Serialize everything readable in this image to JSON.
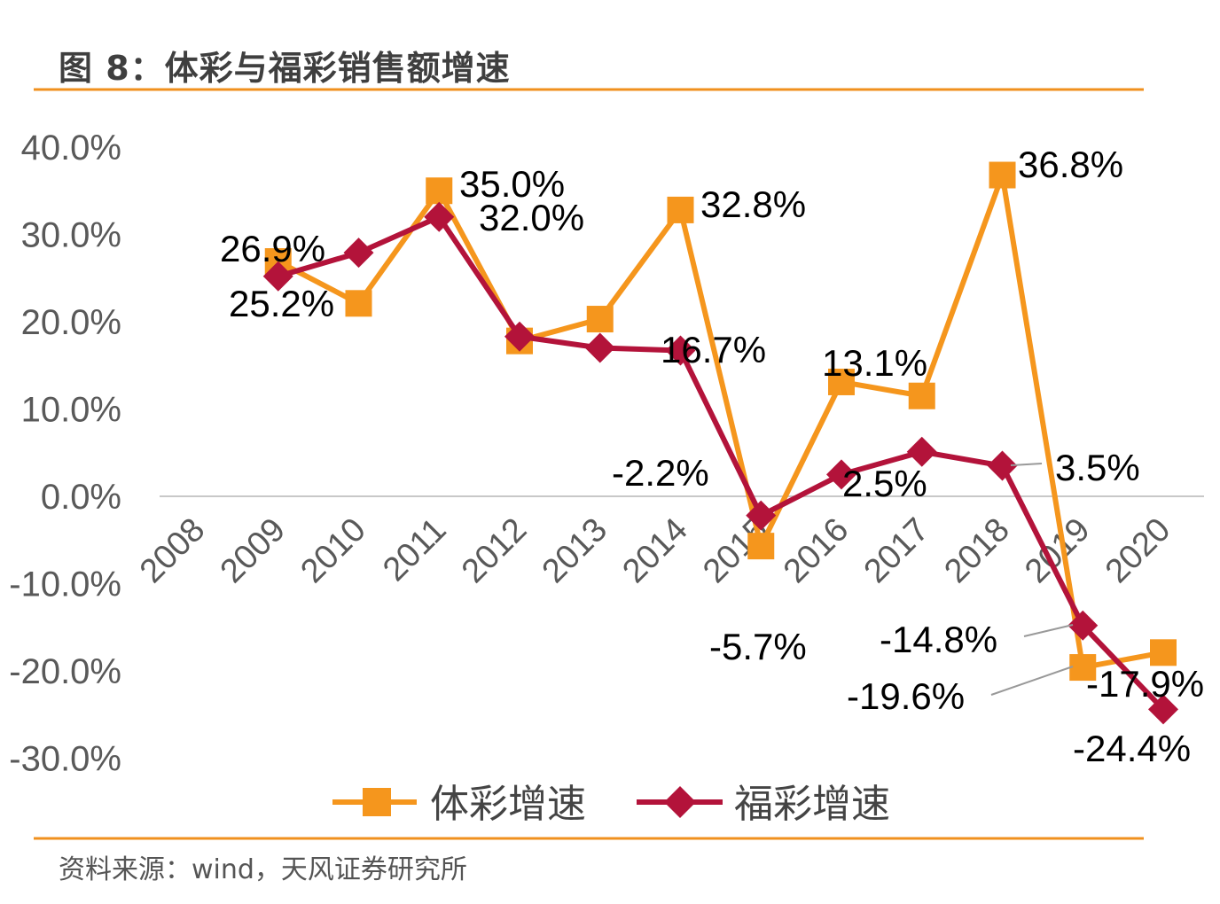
{
  "title": "图 8：体彩与福彩销售额增速",
  "source": "资料来源：wind，天风证券研究所",
  "chart_data": {
    "type": "line",
    "title": "图 8：体彩与福彩销售额增速",
    "categories": [
      "2008",
      "2009",
      "2010",
      "2011",
      "2012",
      "2013",
      "2014",
      "2015",
      "2016",
      "2017",
      "2018",
      "2019",
      "2020"
    ],
    "ylim": [
      -30,
      40
    ],
    "yticks": [
      40,
      30,
      20,
      10,
      0,
      -10,
      -20,
      -30
    ],
    "ytick_labels": [
      "40.0%",
      "30.0%",
      "20.0%",
      "10.0%",
      "0.0%",
      "-10.0%",
      "-20.0%",
      "-30.0%"
    ],
    "grid": false,
    "legend_placement": "bottom",
    "series": [
      {
        "name": "体彩增速",
        "color": "#F5961D",
        "marker": "square",
        "values": [
          null,
          26.9,
          22.1,
          35.0,
          17.8,
          20.3,
          32.8,
          -5.7,
          13.1,
          11.5,
          36.8,
          -19.6,
          -17.9
        ],
        "data_labels": [
          null,
          "26.9%",
          null,
          "35.0%",
          null,
          null,
          "32.8%",
          "-5.7%",
          "13.1%",
          null,
          "36.8%",
          "-19.6%",
          "-17.9%"
        ]
      },
      {
        "name": "福彩增速",
        "color": "#B3133A",
        "marker": "diamond",
        "values": [
          null,
          25.2,
          27.9,
          32.0,
          18.3,
          17.0,
          16.7,
          -2.2,
          2.5,
          5.1,
          3.5,
          -14.8,
          -24.4
        ],
        "data_labels": [
          null,
          "25.2%",
          null,
          "32.0%",
          null,
          null,
          "16.7%",
          "-2.2%",
          "2.5%",
          null,
          "3.5%",
          "-14.8%",
          "-24.4%"
        ]
      }
    ]
  }
}
